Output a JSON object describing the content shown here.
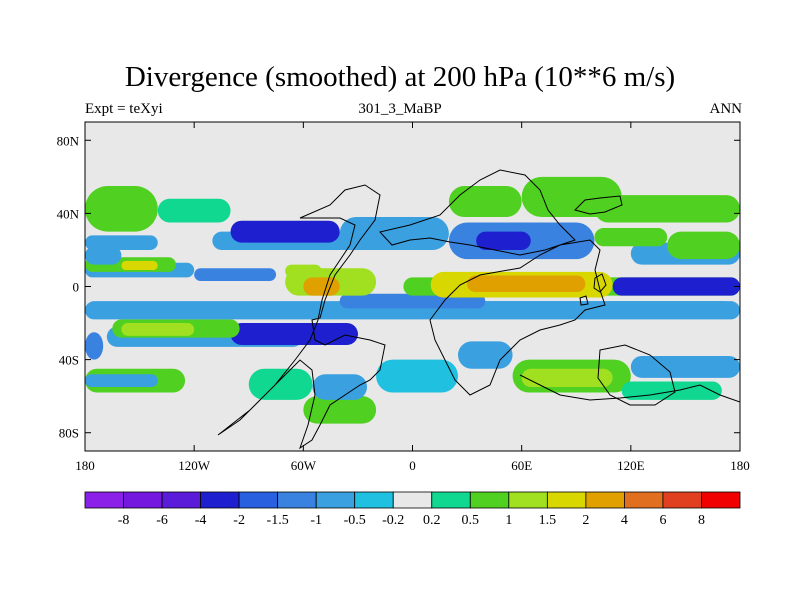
{
  "title": "Divergence (smoothed) at 200 hPa (10**6 m/s)",
  "subtitle_left": "Expt = teXyi",
  "subtitle_center": "301_3_MaBP",
  "subtitle_right": "ANN",
  "chart_data": {
    "type": "heatmap",
    "variable": "Divergence (smoothed) at 200 hPa",
    "units": "10**6 m/s",
    "xlim": [
      -180,
      180
    ],
    "ylim": [
      -90,
      90
    ],
    "x_ticks": [
      {
        "value": -180,
        "label": "180"
      },
      {
        "value": -120,
        "label": "120W"
      },
      {
        "value": -60,
        "label": "60W"
      },
      {
        "value": 0,
        "label": "0"
      },
      {
        "value": 60,
        "label": "60E"
      },
      {
        "value": 120,
        "label": "120E"
      },
      {
        "value": 180,
        "label": "180"
      }
    ],
    "y_ticks": [
      {
        "value": 80,
        "label": "80N"
      },
      {
        "value": 40,
        "label": "40N"
      },
      {
        "value": 0,
        "label": "0"
      },
      {
        "value": -40,
        "label": "40S"
      },
      {
        "value": -80,
        "label": "80S"
      }
    ],
    "colorbar": {
      "colors": [
        "#8b20e8",
        "#7418e0",
        "#5a1cd8",
        "#1e20d0",
        "#2860e0",
        "#3a82e0",
        "#3aa0e0",
        "#20c0e0",
        "#e8e8e8",
        "#10d890",
        "#50d020",
        "#a0e020",
        "#d8d800",
        "#e0a000",
        "#e07020",
        "#e04020",
        "#f00000"
      ],
      "levels": [
        -8,
        -6,
        -4,
        -2,
        -1.5,
        -1,
        -0.5,
        -0.2,
        0.2,
        0.5,
        1,
        1.5,
        2,
        4,
        6,
        8
      ],
      "level_labels": [
        "-8",
        "-6",
        "-4",
        "-2",
        "-1.5",
        "-1",
        "-0.5",
        "-0.2",
        "0.2",
        "0.5",
        "1",
        "1.5",
        "2",
        "4",
        "6",
        "8"
      ]
    },
    "regions": [
      {
        "lon": [
          -180,
          -170
        ],
        "lat": [
          -40,
          -25
        ],
        "value": -1.2
      },
      {
        "lon": [
          -168,
          -60
        ],
        "lat": [
          -33,
          -22
        ],
        "value": -1.0
      },
      {
        "lon": [
          -100,
          -30
        ],
        "lat": [
          -32,
          -20
        ],
        "value": -2.2
      },
      {
        "lon": [
          -95,
          -30
        ],
        "lat": [
          -30,
          -22
        ],
        "value": -2.5
      },
      {
        "lon": [
          -165,
          -95
        ],
        "lat": [
          -28,
          -18
        ],
        "value": 0.7
      },
      {
        "lon": [
          -160,
          -120
        ],
        "lat": [
          -27,
          -20
        ],
        "value": 1.2
      },
      {
        "lon": [
          -180,
          -125
        ],
        "lat": [
          -58,
          -45
        ],
        "value": 0.5
      },
      {
        "lon": [
          -180,
          -140
        ],
        "lat": [
          -55,
          -48
        ],
        "value": -0.8
      },
      {
        "lon": [
          -90,
          -55
        ],
        "lat": [
          -62,
          -45
        ],
        "value": 0.4
      },
      {
        "lon": [
          -60,
          -20
        ],
        "lat": [
          -75,
          -60
        ],
        "value": 0.6
      },
      {
        "lon": [
          -55,
          -25
        ],
        "lat": [
          -62,
          -48
        ],
        "value": -1.0
      },
      {
        "lon": [
          -20,
          25
        ],
        "lat": [
          -58,
          -40
        ],
        "value": -0.5
      },
      {
        "lon": [
          25,
          55
        ],
        "lat": [
          -45,
          -30
        ],
        "value": -0.8
      },
      {
        "lon": [
          55,
          120
        ],
        "lat": [
          -58,
          -40
        ],
        "value": 0.8
      },
      {
        "lon": [
          60,
          110
        ],
        "lat": [
          -55,
          -45
        ],
        "value": 1.3
      },
      {
        "lon": [
          120,
          180
        ],
        "lat": [
          -50,
          -38
        ],
        "value": -0.6
      },
      {
        "lon": [
          115,
          170
        ],
        "lat": [
          -62,
          -52
        ],
        "value": 0.4
      },
      {
        "lon": [
          -180,
          180
        ],
        "lat": [
          -18,
          -8
        ],
        "value": -0.7
      },
      {
        "lon": [
          25,
          175
        ],
        "lat": [
          -16,
          -8
        ],
        "value": -0.9
      },
      {
        "lon": [
          -40,
          40
        ],
        "lat": [
          -12,
          -4
        ],
        "value": -1.2
      },
      {
        "lon": [
          -5,
          180
        ],
        "lat": [
          -5,
          5
        ],
        "value": 0.6
      },
      {
        "lon": [
          10,
          110
        ],
        "lat": [
          -6,
          8
        ],
        "value": 1.6
      },
      {
        "lon": [
          30,
          95
        ],
        "lat": [
          -3,
          6
        ],
        "value": 2.8
      },
      {
        "lon": [
          110,
          180
        ],
        "lat": [
          -5,
          5
        ],
        "value": -2.1
      },
      {
        "lon": [
          -70,
          -20
        ],
        "lat": [
          -5,
          10
        ],
        "value": 1.0
      },
      {
        "lon": [
          -60,
          -40
        ],
        "lat": [
          -5,
          5
        ],
        "value": 2.2
      },
      {
        "lon": [
          -120,
          -75
        ],
        "lat": [
          3,
          10
        ],
        "value": -1.5
      },
      {
        "lon": [
          -180,
          -120
        ],
        "lat": [
          5,
          13
        ],
        "value": -0.8
      },
      {
        "lon": [
          -180,
          -130
        ],
        "lat": [
          8,
          16
        ],
        "value": 0.7
      },
      {
        "lon": [
          -160,
          -140
        ],
        "lat": [
          9,
          14
        ],
        "value": 1.8
      },
      {
        "lon": [
          -70,
          -50
        ],
        "lat": [
          5,
          12
        ],
        "value": 1.0
      },
      {
        "lon": [
          -110,
          -20
        ],
        "lat": [
          20,
          30
        ],
        "value": -0.8
      },
      {
        "lon": [
          -100,
          -40
        ],
        "lat": [
          24,
          36
        ],
        "value": -2.6
      },
      {
        "lon": [
          -180,
          -140
        ],
        "lat": [
          20,
          28
        ],
        "value": -0.9
      },
      {
        "lon": [
          -180,
          -140
        ],
        "lat": [
          30,
          55
        ],
        "value": 0.6
      },
      {
        "lon": [
          -140,
          -100
        ],
        "lat": [
          35,
          48
        ],
        "value": 0.4
      },
      {
        "lon": [
          -40,
          20
        ],
        "lat": [
          20,
          38
        ],
        "value": -0.7
      },
      {
        "lon": [
          20,
          100
        ],
        "lat": [
          15,
          35
        ],
        "value": -1.3
      },
      {
        "lon": [
          35,
          65
        ],
        "lat": [
          20,
          30
        ],
        "value": -2.4
      },
      {
        "lon": [
          20,
          60
        ],
        "lat": [
          38,
          55
        ],
        "value": 0.5
      },
      {
        "lon": [
          60,
          115
        ],
        "lat": [
          38,
          60
        ],
        "value": 0.8
      },
      {
        "lon": [
          100,
          180
        ],
        "lat": [
          35,
          50
        ],
        "value": 0.5
      },
      {
        "lon": [
          120,
          180
        ],
        "lat": [
          12,
          24
        ],
        "value": -0.6
      },
      {
        "lon": [
          140,
          180
        ],
        "lat": [
          15,
          30
        ],
        "value": 0.7
      },
      {
        "lon": [
          100,
          140
        ],
        "lat": [
          22,
          32
        ],
        "value": 0.5
      },
      {
        "lon": [
          -180,
          -160
        ],
        "lat": [
          12,
          22
        ],
        "value": -0.6
      }
    ]
  }
}
